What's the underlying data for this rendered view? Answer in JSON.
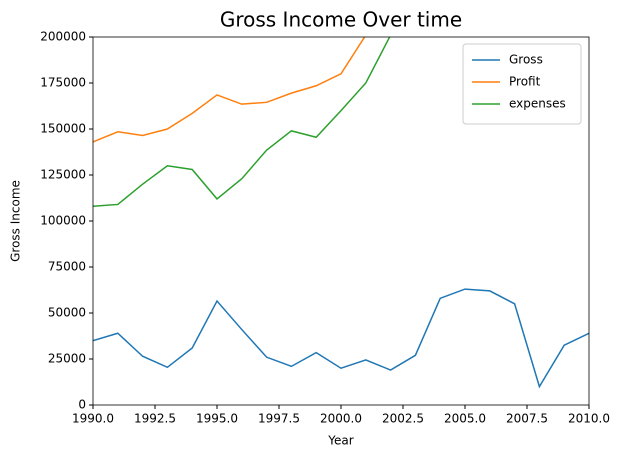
{
  "chart_data": {
    "type": "line",
    "title": "Gross Income Over time",
    "x_label": "Year",
    "y_label": "Gross Income",
    "x": [
      1990,
      1991,
      1992,
      1993,
      1994,
      1995,
      1996,
      1997,
      1998,
      1999,
      2000,
      2001,
      2002,
      2003,
      2004,
      2005,
      2006,
      2007,
      2008,
      2009,
      2010
    ],
    "series": [
      {
        "name": "Gross",
        "color": "#1f77b4",
        "values": [
          35000,
          39000,
          26500,
          20500,
          31000,
          56500,
          41000,
          26000,
          21000,
          28500,
          20000,
          24500,
          19000,
          27000,
          58000,
          63000,
          62000,
          55000,
          10000,
          32500,
          39000
        ]
      },
      {
        "name": "Profit",
        "color": "#ff7f0e",
        "values": [
          143000,
          148500,
          146500,
          150000,
          158500,
          168500,
          163500,
          164500,
          169500,
          173500,
          180000,
          201000,
          null,
          null,
          null,
          null,
          null,
          null,
          null,
          null,
          null
        ]
      },
      {
        "name": "expenses",
        "color": "#2ca02c",
        "values": [
          108000,
          109000,
          120000,
          130000,
          128000,
          112000,
          123000,
          138500,
          149000,
          145500,
          160000,
          175000,
          201000,
          null,
          null,
          null,
          null,
          null,
          null,
          null,
          null
        ]
      }
    ],
    "xlim": [
      1990,
      2010
    ],
    "xticks": [
      {
        "value": 1990,
        "label": "1990.0"
      },
      {
        "value": 1992.5,
        "label": "1992.5"
      },
      {
        "value": 1995,
        "label": "1995.0"
      },
      {
        "value": 1997.5,
        "label": "1997.5"
      },
      {
        "value": 2000,
        "label": "2000.0"
      },
      {
        "value": 2002.5,
        "label": "2002.5"
      },
      {
        "value": 2005,
        "label": "2005.0"
      },
      {
        "value": 2007.5,
        "label": "2007.5"
      },
      {
        "value": 2010,
        "label": "2010.0"
      }
    ],
    "ylim": [
      0,
      200000
    ],
    "yticks": [
      0,
      25000,
      50000,
      75000,
      100000,
      125000,
      150000,
      175000,
      200000
    ],
    "legend": "upper right",
    "grid": false
  }
}
